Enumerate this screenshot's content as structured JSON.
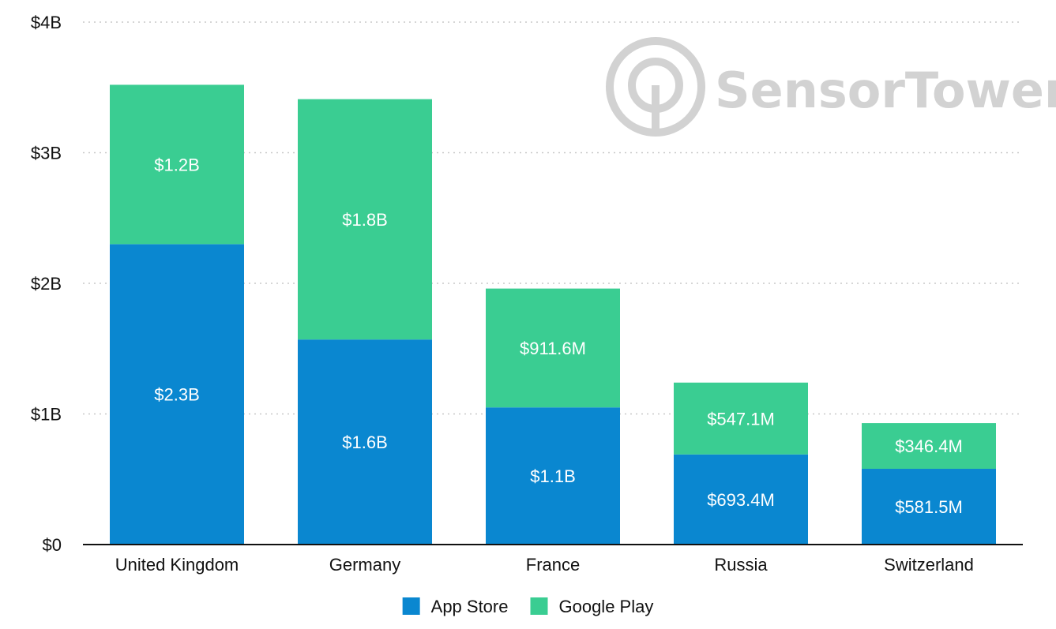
{
  "chart_data": {
    "type": "bar",
    "stacked": true,
    "categories": [
      "United Kingdom",
      "Germany",
      "France",
      "Russia",
      "Switzerland"
    ],
    "series": [
      {
        "name": "App Store",
        "color": "#0a87d0",
        "values": [
          2.3,
          1.57,
          1.05,
          0.69,
          0.58
        ],
        "labels": [
          "$2.3B",
          "$1.6B",
          "$1.1B",
          "$693.4M",
          "$581.5M"
        ]
      },
      {
        "name": "Google Play",
        "color": "#3acd92",
        "values": [
          1.22,
          1.84,
          0.91,
          0.55,
          0.35
        ],
        "labels": [
          "$1.2B",
          "$1.8B",
          "$911.6M",
          "$547.1M",
          "$346.4M"
        ]
      }
    ],
    "ylim": [
      0,
      4
    ],
    "yticks": [
      0,
      1,
      2,
      3,
      4
    ],
    "ytick_labels": [
      "$0",
      "$1B",
      "$2B",
      "$3B",
      "$4B"
    ],
    "xlabel": "",
    "ylabel": "",
    "grid": true,
    "legend_position": "bottom-center"
  },
  "watermark": {
    "text": "SensorTower",
    "color": "#d2d2d2",
    "icon": "sensor-tower-logo-icon"
  }
}
